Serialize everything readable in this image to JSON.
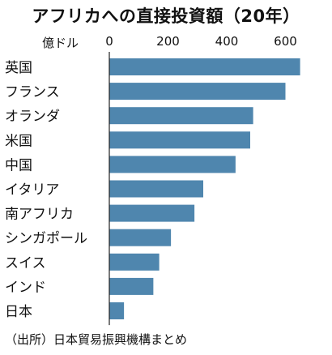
{
  "title": "アフリカへの直接投資額（20年）",
  "unit_label": "億ドル",
  "source": "（出所）日本貿易振興機構まとめ",
  "colors": {
    "bar": "#4f86ae",
    "axis": "#222222"
  },
  "chart_data": {
    "type": "bar",
    "orientation": "horizontal",
    "categories": [
      "英国",
      "フランス",
      "オランダ",
      "米国",
      "中国",
      "イタリア",
      "南アフリカ",
      "シンガポール",
      "スイス",
      "インド",
      "日本"
    ],
    "values": [
      650,
      600,
      490,
      480,
      430,
      320,
      290,
      210,
      170,
      150,
      50
    ],
    "title": "アフリカへの直接投資額（20年）",
    "xlabel": "億ドル",
    "xlim": [
      0,
      680
    ],
    "x_ticks": [
      0,
      200,
      400,
      600
    ],
    "grid": false,
    "legend": "none"
  }
}
